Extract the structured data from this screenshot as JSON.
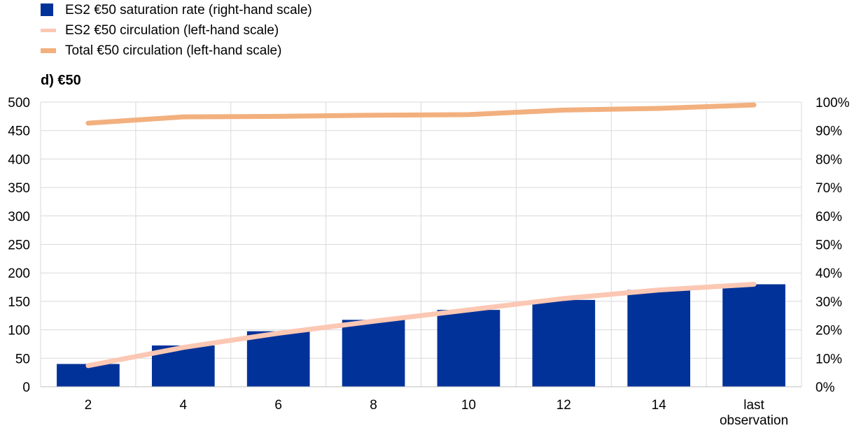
{
  "chart_data": {
    "type": "bar",
    "title": "d) €50",
    "categories": [
      "2",
      "4",
      "6",
      "8",
      "10",
      "12",
      "14",
      "last observation"
    ],
    "series": [
      {
        "name": "ES2 €50 saturation rate (right-hand scale)",
        "kind": "bar",
        "axis": "right",
        "color": "#003299",
        "values": [
          8,
          14.5,
          19.5,
          23.5,
          27,
          30.5,
          34,
          36
        ]
      },
      {
        "name": "ES2 €50 circulation (left-hand scale)",
        "kind": "line",
        "axis": "left",
        "color": "#FCC7B3",
        "values": [
          37,
          69,
          94,
          115,
          135,
          155,
          170,
          180
        ]
      },
      {
        "name": "Total €50 circulation (left-hand scale)",
        "kind": "line",
        "axis": "left",
        "color": "#F2B07E",
        "values": [
          463,
          474,
          475,
          477,
          478,
          486,
          489,
          495
        ]
      }
    ],
    "y_left": {
      "min": 0,
      "max": 500,
      "ticks": [
        "0",
        "50",
        "100",
        "150",
        "200",
        "250",
        "300",
        "350",
        "400",
        "450",
        "500"
      ]
    },
    "y_right": {
      "min": 0,
      "max": 100,
      "ticks": [
        "0%",
        "10%",
        "20%",
        "30%",
        "40%",
        "50%",
        "60%",
        "70%",
        "80%",
        "90%",
        "100%"
      ]
    },
    "grid": true,
    "legend_position": "top-left"
  }
}
